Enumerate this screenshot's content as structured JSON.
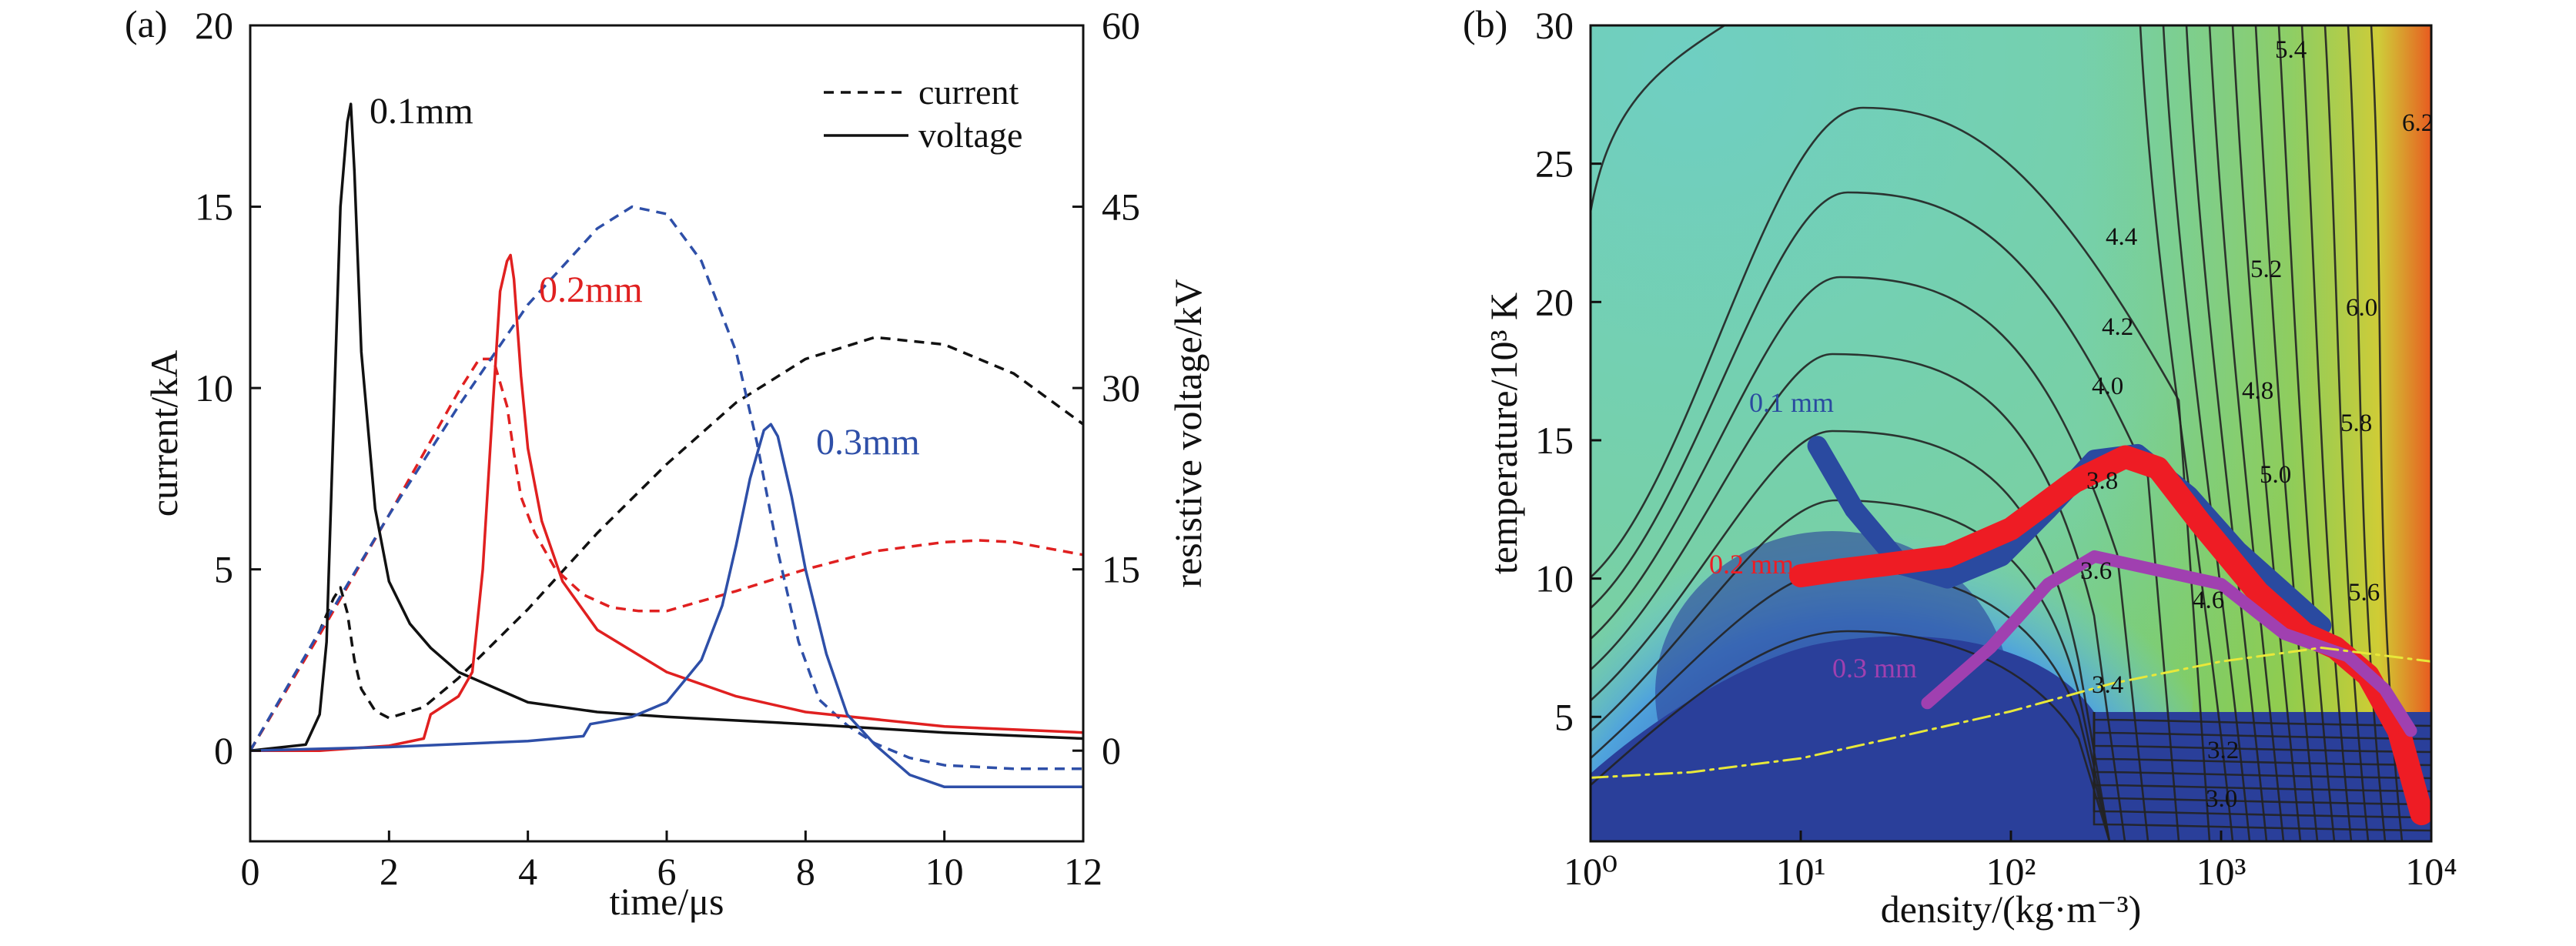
{
  "colors": {
    "black": "#111111",
    "red": "#e02020",
    "blue": "#2e4fa8",
    "traj_blue": "#2a4aa0",
    "traj_red": "#ee1c24",
    "traj_purple": "#a040b0",
    "yellow_line": "#e8e83a",
    "deep_blue": "#2a3f9a"
  },
  "panel_a": {
    "label": "(a)",
    "xlabel": "time/μs",
    "ylabel_left": "current/kA",
    "ylabel_right": "resistive voltage/kV",
    "xticks": [
      "0",
      "2",
      "4",
      "6",
      "8",
      "10",
      "12"
    ],
    "yticks_left": [
      "0",
      "5",
      "10",
      "15",
      "20"
    ],
    "yticks_right": [
      "0",
      "15",
      "30",
      "45",
      "60"
    ],
    "legend": {
      "current": "current",
      "voltage": "voltage"
    },
    "series_labels": {
      "s01": "0.1mm",
      "s02": "0.2mm",
      "s03": "0.3mm"
    }
  },
  "panel_b": {
    "label": "(b)",
    "xlabel": "density/(kg·m⁻³)",
    "ylabel": "temperature/10³ K",
    "xticks": [
      "10⁰",
      "10¹",
      "10²",
      "10³",
      "10⁴"
    ],
    "yticks": [
      "5",
      "10",
      "15",
      "20",
      "25",
      "30"
    ],
    "contour_labels": [
      "5.4",
      "6.2",
      "4.4",
      "5.2",
      "6.0",
      "4.2",
      "4.8",
      "4.0",
      "5.8",
      "5.0",
      "3.8",
      "3.6",
      "4.6",
      "5.6",
      "3.4",
      "3.2",
      "3.0"
    ],
    "trajectory_labels": {
      "t01": "0.1 mm",
      "t02": "0.2 mm",
      "t03": "0.3 mm"
    }
  },
  "chart_data": [
    {
      "type": "line",
      "title": "",
      "xlabel": "time/μs",
      "ylabel": "current/kA",
      "y2label": "resistive voltage/kV",
      "xlim": [
        0,
        12
      ],
      "ylim": [
        -2.5,
        20
      ],
      "y2lim": [
        -7.5,
        60
      ],
      "legend_position": "top-right",
      "grid": false,
      "series": [
        {
          "name": "0.1mm current",
          "axis": "left",
          "style": "dashed",
          "color": "#111111",
          "x": [
            0,
            0.5,
            1.0,
            1.2,
            1.3,
            1.4,
            1.5,
            1.6,
            1.8,
            2.0,
            2.5,
            3.0,
            4.0,
            5.0,
            6.0,
            7.0,
            8.0,
            9.0,
            10.0,
            11.0,
            12.0
          ],
          "y": [
            0,
            1.6,
            3.3,
            4.2,
            4.5,
            3.8,
            2.5,
            1.7,
            1.1,
            0.9,
            1.2,
            2.0,
            3.9,
            6.0,
            7.9,
            9.6,
            10.8,
            11.4,
            11.2,
            10.4,
            9.0
          ]
        },
        {
          "name": "0.2mm current",
          "axis": "left",
          "style": "dashed",
          "color": "#e02020",
          "x": [
            0,
            1,
            2,
            2.5,
            3.0,
            3.3,
            3.5,
            3.7,
            3.8,
            3.9,
            4.1,
            4.4,
            4.8,
            5.2,
            5.6,
            6.0,
            7.0,
            8.0,
            9.0,
            10.0,
            10.5,
            11.0,
            12.0
          ],
          "y": [
            0,
            3.2,
            6.5,
            8.2,
            9.9,
            10.8,
            10.8,
            9.5,
            8.2,
            7.0,
            6.0,
            5.0,
            4.3,
            3.95,
            3.85,
            3.85,
            4.4,
            5.0,
            5.5,
            5.75,
            5.8,
            5.75,
            5.4
          ]
        },
        {
          "name": "0.3mm current",
          "axis": "left",
          "style": "dashed",
          "color": "#2e4fa8",
          "x": [
            0,
            1,
            2,
            3,
            4,
            5,
            5.5,
            6.0,
            6.5,
            7.0,
            7.3,
            7.6,
            7.9,
            8.2,
            8.6,
            9.0,
            9.5,
            10.0,
            11.0,
            12.0
          ],
          "y": [
            0,
            3.3,
            6.5,
            9.5,
            12.3,
            14.4,
            15.0,
            14.8,
            13.5,
            11.0,
            8.5,
            5.5,
            3.0,
            1.4,
            0.7,
            0.2,
            -0.2,
            -0.4,
            -0.5,
            -0.5
          ]
        },
        {
          "name": "0.1mm voltage",
          "axis": "right",
          "style": "solid",
          "color": "#111111",
          "x": [
            0,
            0.8,
            1.0,
            1.1,
            1.2,
            1.3,
            1.4,
            1.45,
            1.5,
            1.6,
            1.8,
            2.0,
            2.3,
            2.6,
            3.0,
            4.0,
            5.0,
            6.0,
            8.0,
            10.0,
            12.0
          ],
          "y": [
            0,
            0.5,
            3.0,
            9.0,
            27.0,
            45.0,
            52.0,
            53.5,
            48.0,
            33.0,
            20.0,
            14.0,
            10.5,
            8.5,
            6.5,
            4.0,
            3.2,
            2.8,
            2.2,
            1.5,
            1.0
          ]
        },
        {
          "name": "0.2mm voltage",
          "axis": "right",
          "style": "solid",
          "color": "#e02020",
          "x": [
            0,
            1,
            2.0,
            2.5,
            2.6,
            3.0,
            3.2,
            3.35,
            3.5,
            3.6,
            3.7,
            3.75,
            3.8,
            3.9,
            4.0,
            4.2,
            4.5,
            5.0,
            6.0,
            7.0,
            8.0,
            10.0,
            12.0
          ],
          "y": [
            0,
            0,
            0.4,
            1.0,
            3.0,
            4.5,
            6.5,
            15.0,
            29.0,
            38.0,
            40.5,
            41.0,
            39.0,
            31.0,
            25.0,
            19.0,
            14.0,
            10.0,
            6.5,
            4.5,
            3.2,
            2.0,
            1.5
          ]
        },
        {
          "name": "0.3mm voltage",
          "axis": "right",
          "style": "solid",
          "color": "#2e4fa8",
          "x": [
            0,
            2,
            4,
            4.8,
            4.9,
            5.5,
            6.0,
            6.5,
            6.8,
            7.0,
            7.2,
            7.4,
            7.5,
            7.6,
            7.8,
            8.0,
            8.3,
            8.6,
            9.0,
            9.5,
            10.0,
            12.0
          ],
          "y": [
            0,
            0.3,
            0.8,
            1.2,
            2.2,
            2.8,
            4.0,
            7.5,
            12.0,
            17.0,
            22.5,
            26.5,
            27.0,
            26.0,
            21.0,
            15.0,
            8.0,
            3.0,
            0.5,
            -2.0,
            -3.0,
            -3.0
          ]
        }
      ]
    },
    {
      "type": "heatmap",
      "title": "",
      "xlabel": "density/(kg·m⁻³)",
      "ylabel": "temperature/10³ K",
      "xscale": "log",
      "xlim": [
        1,
        10000
      ],
      "ylim": [
        0.5,
        30
      ],
      "colormap": "deep blue (low) → cyan → green → yellow/red (high)",
      "contour_levels": [
        3.0,
        3.2,
        3.4,
        3.6,
        3.8,
        4.0,
        4.2,
        4.4,
        4.6,
        4.8,
        5.0,
        5.2,
        5.4,
        5.6,
        5.8,
        6.0,
        6.2
      ],
      "series": [
        {
          "name": "0.1 mm",
          "color": "#2a4aa0",
          "x": [
            12,
            18,
            30,
            50,
            90,
            150,
            250,
            400,
            700,
            1200,
            2000,
            3000
          ],
          "y": [
            14.8,
            12.5,
            10.5,
            10.0,
            10.8,
            12.5,
            14.3,
            14.5,
            13.0,
            11.0,
            9.5,
            8.3
          ]
        },
        {
          "name": "0.2 mm",
          "color": "#ee1c24",
          "x": [
            10,
            15,
            25,
            50,
            100,
            200,
            350,
            500,
            800,
            1500,
            2500,
            3500,
            5000,
            7000,
            9000
          ],
          "y": [
            10.1,
            10.3,
            10.5,
            10.8,
            11.8,
            13.5,
            14.4,
            14.0,
            12.0,
            9.5,
            8.0,
            7.5,
            6.5,
            4.5,
            1.5
          ]
        },
        {
          "name": "0.3 mm",
          "color": "#a040b0",
          "x": [
            40,
            80,
            150,
            250,
            500,
            1000,
            2000,
            4000,
            6000,
            8000
          ],
          "y": [
            5.5,
            7.5,
            9.8,
            10.8,
            10.3,
            9.8,
            8.0,
            7.2,
            6.0,
            4.5
          ]
        },
        {
          "name": "boundary",
          "color": "#e8e83a",
          "style": "dash-dot",
          "x": [
            1,
            3,
            10,
            30,
            100,
            300,
            1000,
            3000,
            10000
          ],
          "y": [
            2.8,
            3.0,
            3.5,
            4.3,
            5.2,
            6.2,
            7.0,
            7.5,
            7.0
          ]
        }
      ]
    }
  ]
}
